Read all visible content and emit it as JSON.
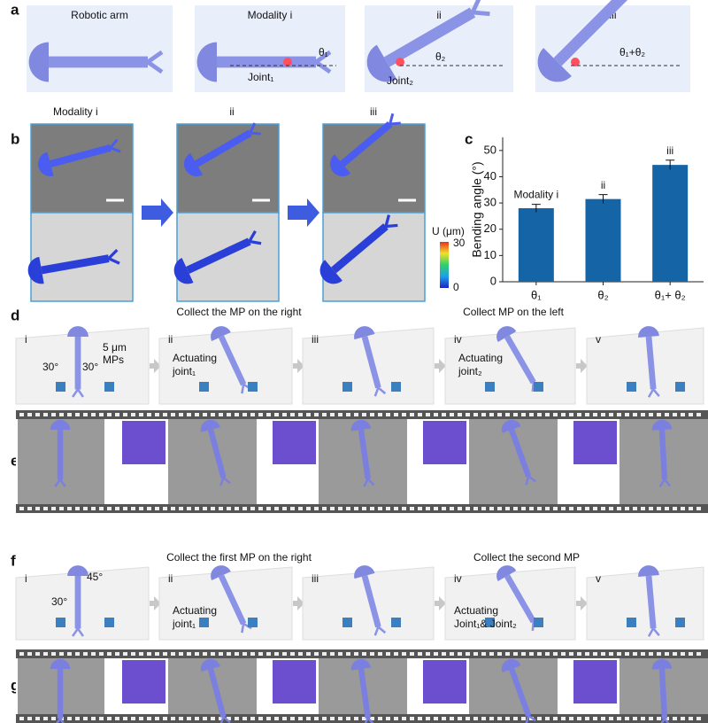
{
  "panel_a": {
    "label": "a",
    "frames": [
      {
        "title": "Robotic arm"
      },
      {
        "title": "Modality i",
        "joint": "Joint₁",
        "angle": "θ₁"
      },
      {
        "title": "ii",
        "joint": "Joint₂",
        "angle": "θ₂"
      },
      {
        "title": "iii",
        "angle": "θ₁+θ₂"
      }
    ]
  },
  "panel_b": {
    "label": "b",
    "titles": [
      "Modality i",
      "ii",
      "iii"
    ],
    "colorbar": {
      "title": "U (μm)",
      "max": 30,
      "min": 0
    }
  },
  "chart_data": {
    "type": "bar",
    "label": "c",
    "ylabel": "Bending angle (°)",
    "categories": [
      "θ₁",
      "θ₂",
      "θ₁+ θ₂"
    ],
    "values": [
      28,
      31.5,
      44.5
    ],
    "errors": [
      1.5,
      1.7,
      1.8
    ],
    "annotations": [
      "Modality i",
      "ii",
      "iii"
    ],
    "color": "#1565a6",
    "ylim": [
      0,
      55
    ],
    "yticks": [
      0,
      10,
      20,
      30,
      40,
      50
    ]
  },
  "panel_d": {
    "label": "d",
    "headers": [
      "Collect the MP on the right",
      "Collect  MP on the left"
    ],
    "frames": [
      {
        "label": "i",
        "notes": [
          "30°",
          "30°",
          "5 μm",
          "MPs"
        ]
      },
      {
        "label": "ii",
        "notes": [
          "Actuating",
          "joint₁"
        ]
      },
      {
        "label": "iii",
        "notes": []
      },
      {
        "label": "iv",
        "notes": [
          "Actuating",
          "joint₂"
        ]
      },
      {
        "label": "v",
        "notes": []
      }
    ]
  },
  "panel_e": {
    "label": "e"
  },
  "panel_f": {
    "label": "f",
    "headers": [
      "Collect the first MP on the right",
      "Collect the second MP"
    ],
    "frames": [
      {
        "label": "i",
        "notes": [
          "45°",
          "30°"
        ]
      },
      {
        "label": "ii",
        "notes": [
          "Actuating",
          "joint₁"
        ]
      },
      {
        "label": "iii",
        "notes": []
      },
      {
        "label": "iv",
        "notes": [
          "Actuating",
          "Joint₁& Joint₂"
        ]
      },
      {
        "label": "v",
        "notes": []
      }
    ]
  },
  "panel_g": {
    "label": "g"
  }
}
